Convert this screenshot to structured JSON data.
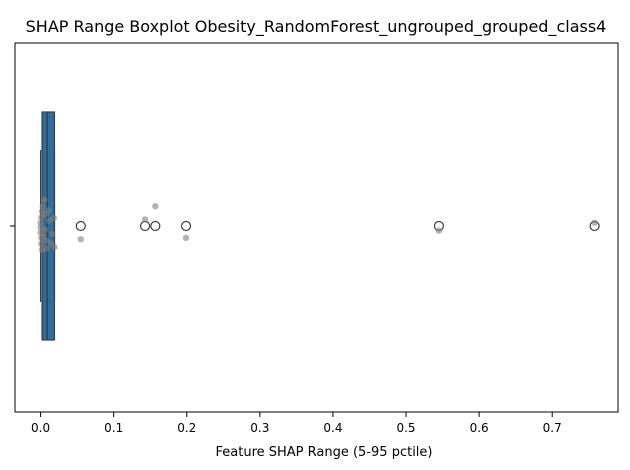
{
  "chart_data": {
    "type": "boxplot",
    "orientation": "horizontal",
    "title": "SHAP Range Boxplot Obesity_RandomForest_ungrouped_grouped_class4",
    "xlabel": "Feature SHAP Range (5-95 pctile)",
    "ylabel": "",
    "xlim": [
      -0.035,
      0.79
    ],
    "xticks": [
      0.0,
      0.1,
      0.2,
      0.3,
      0.4,
      0.5,
      0.6,
      0.7
    ],
    "xtick_labels": [
      "0.0",
      "0.1",
      "0.2",
      "0.3",
      "0.4",
      "0.5",
      "0.6",
      "0.7"
    ],
    "grid": false,
    "box": {
      "color": "#2e6e9e",
      "q1": 0.002,
      "median": 0.009,
      "q3": 0.019,
      "whisker_low": 0.0,
      "whisker_high": 0.019
    },
    "outliers": [
      0.055,
      0.143,
      0.157,
      0.199,
      0.545,
      0.758
    ],
    "strip_points": {
      "color": "#808080",
      "values": [
        0.0,
        0.0,
        0.0,
        0.001,
        0.001,
        0.001,
        0.002,
        0.002,
        0.003,
        0.004,
        0.005,
        0.006,
        0.007,
        0.008,
        0.009,
        0.011,
        0.012,
        0.014,
        0.016,
        0.018,
        0.019,
        0.055,
        0.143,
        0.157,
        0.199,
        0.545,
        0.758
      ],
      "jitter": [
        0.02,
        -0.05,
        0.1,
        0.18,
        -0.13,
        0.27,
        -0.22,
        0.36,
        -0.3,
        0.14,
        -0.4,
        0.05,
        -0.18,
        0.22,
        0.34,
        -0.24,
        -0.08,
        0.26,
        0.12,
        -0.12,
        0.32,
        0.2,
        -0.1,
        -0.3,
        0.18,
        0.07,
        -0.05
      ]
    }
  }
}
